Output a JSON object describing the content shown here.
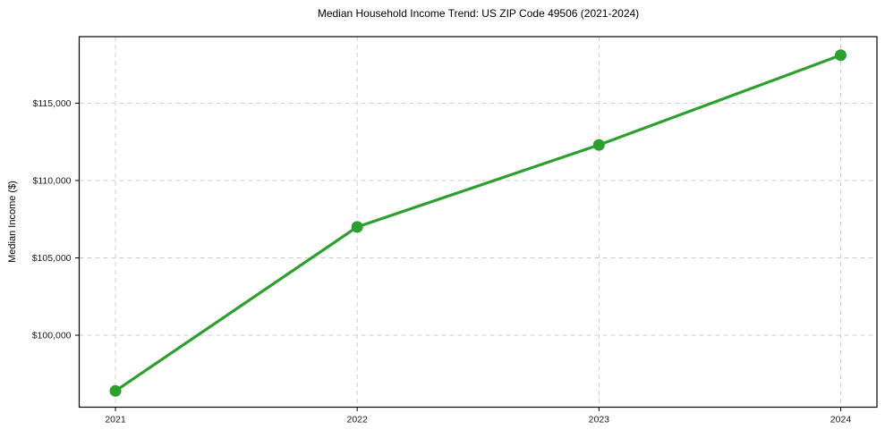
{
  "chart_data": {
    "type": "line",
    "title": "Median Household Income Trend: US ZIP Code 49506 (2021-2024)",
    "xlabel": "",
    "ylabel": "Median Income ($)",
    "x": [
      2021,
      2022,
      2023,
      2024
    ],
    "series": [
      {
        "name": "Median Household Income",
        "values": [
          96400,
          107000,
          112300,
          118100
        ]
      }
    ],
    "xticks": [
      2021,
      2022,
      2023,
      2024
    ],
    "xtick_labels": [
      "2021",
      "2022",
      "2023",
      "2024"
    ],
    "yticks": [
      100000,
      105000,
      110000,
      115000
    ],
    "ytick_labels": [
      "$100,000",
      "$105,000",
      "$110,000",
      "$115,000"
    ],
    "xlim": [
      2020.85,
      2024.15
    ],
    "ylim": [
      95350,
      119300
    ],
    "grid": "dashed, both axes, at tick positions",
    "legend": "none",
    "colors": {
      "line": "#2ca02c",
      "marker": "#2ca02c",
      "grid": "#c9c9c9",
      "axis_border": "#000000",
      "text": "#1a1a1a",
      "background": "#ffffff"
    }
  }
}
